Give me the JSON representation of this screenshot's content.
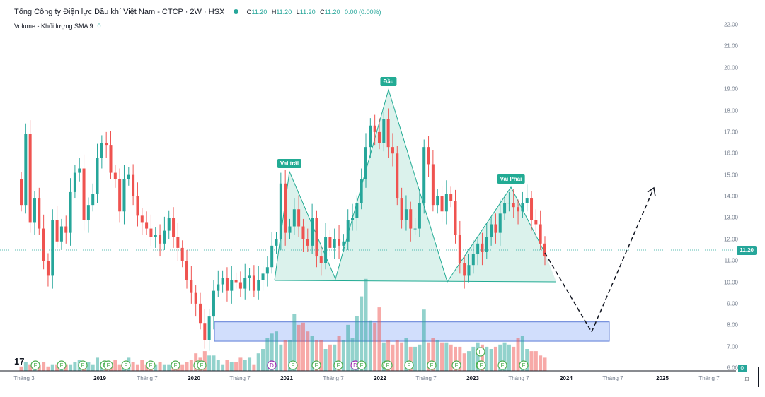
{
  "header": {
    "title": "Tổng Công ty Điện lực Dầu khí Việt Nam - CTCP · 2W · HSX",
    "ohlc": {
      "o_label": "O",
      "o": "11.20",
      "h_label": "H",
      "h": "11.20",
      "l_label": "L",
      "l": "11.20",
      "c_label": "C",
      "c": "11.20",
      "change": "0.00 (0.00%)"
    },
    "volume_label": "Volume - Khối lượng SMA 9",
    "volume_value": "0"
  },
  "price_tag": "11.20",
  "volume_tag": "0",
  "pattern_labels": {
    "left_shoulder": "Vai trái",
    "head": "Đầu",
    "right_shoulder": "Vai Phải"
  },
  "colors": {
    "up": "#26a69a",
    "down": "#ef5350",
    "pattern_fill": "#cfeee6",
    "pattern_line": "#22ab94",
    "box_fill": "#c5d6fb",
    "box_line": "#5b7bd6"
  },
  "chart_data": {
    "type": "candlestick",
    "ylim": [
      6.0,
      22.0
    ],
    "yticks": [
      "22.00",
      "21.00",
      "20.00",
      "19.00",
      "18.00",
      "17.00",
      "16.00",
      "15.00",
      "14.00",
      "13.00",
      "12.00",
      "11.00",
      "10.00",
      "9.00",
      "8.00",
      "7.00",
      "6.00"
    ],
    "xticks": [
      "Tháng 3",
      "2019",
      "Tháng 7",
      "2020",
      "Tháng 7",
      "2021",
      "Tháng 7",
      "2022",
      "Tháng 7",
      "2023",
      "Tháng 7",
      "2024",
      "Tháng 7",
      "2025",
      "Tháng 7"
    ],
    "bars_close": [
      13.6,
      16.9,
      12.8,
      13.9,
      12.5,
      11.0,
      10.3,
      12.9,
      11.9,
      12.6,
      12.3,
      14.2,
      15.1,
      15.3,
      12.9,
      13.6,
      14.1,
      15.8,
      16.5,
      16.4,
      15.1,
      14.8,
      13.3,
      14.8,
      15.0,
      14.0,
      13.1,
      12.8,
      12.5,
      12.1,
      12.2,
      11.8,
      12.4,
      13.0,
      12.1,
      11.6,
      11.0,
      10.1,
      9.5,
      9.0,
      8.1,
      7.3,
      8.4,
      9.6,
      9.9,
      10.2,
      9.6,
      10.1,
      10.0,
      9.7,
      10.2,
      10.3,
      9.6,
      10.1,
      10.4,
      10.7,
      11.7,
      12.0,
      14.6,
      12.3,
      12.6,
      13.4,
      12.6,
      12.0,
      11.7,
      13.0,
      11.2,
      10.9,
      12.1,
      11.6,
      12.0,
      11.7,
      11.9,
      12.9,
      13.0,
      13.7,
      14.8,
      16.3,
      17.3,
      17.0,
      16.5,
      17.6,
      16.3,
      16.0,
      13.9,
      12.9,
      13.4,
      12.5,
      12.5,
      13.7,
      16.3,
      15.5,
      13.6,
      14.0,
      13.3,
      14.1,
      13.8,
      12.2,
      10.9,
      10.3,
      10.8,
      11.3,
      11.8,
      11.4,
      12.1,
      12.7,
      12.3,
      13.2,
      13.7,
      13.7,
      13.5,
      13.3,
      13.7,
      13.9,
      12.9,
      12.7,
      11.8,
      11.2
    ],
    "volume": [
      0.2,
      0.4,
      0.3,
      0.2,
      0.3,
      0.4,
      0.2,
      0.3,
      0.3,
      0.4,
      0.3,
      0.3,
      0.4,
      0.5,
      0.3,
      0.4,
      0.3,
      0.6,
      0.4,
      0.3,
      0.2,
      0.5,
      0.3,
      0.4,
      0.6,
      0.4,
      0.3,
      0.5,
      0.3,
      0.2,
      0.3,
      0.4,
      0.3,
      0.3,
      0.2,
      0.4,
      0.3,
      0.4,
      0.5,
      0.8,
      0.6,
      0.9,
      0.7,
      0.7,
      0.5,
      0.3,
      0.5,
      0.4,
      0.4,
      0.6,
      0.5,
      0.6,
      0.3,
      0.8,
      1.0,
      1.5,
      1.7,
      1.8,
      1.2,
      1.4,
      1.4,
      2.6,
      2.1,
      2.2,
      1.8,
      1.6,
      1.4,
      1.4,
      1.0,
      1.2,
      1.2,
      1.6,
      1.4,
      2.1,
      1.5,
      2.5,
      3.4,
      4.2,
      2.3,
      2.2,
      2.9,
      1.3,
      1.4,
      1.2,
      1.4,
      1.3,
      1.5,
      1.1,
      1.1,
      1.2,
      2.8,
      1.3,
      1.5,
      1.4,
      1.3,
      1.3,
      1.2,
      1.1,
      1.1,
      0.8,
      0.9,
      1.1,
      1.3,
      1.2,
      1.1,
      1.0,
      1.1,
      1.2,
      1.3,
      1.2,
      1.1,
      1.5,
      1.6,
      1.0,
      0.9,
      0.9,
      0.7,
      0.6
    ],
    "patterns": {
      "head_and_shoulders": [
        [
          388,
          397
        ],
        [
          409,
          243
        ],
        [
          474,
          395
        ],
        [
          549,
          127
        ],
        [
          632,
          399
        ],
        [
          722,
          265
        ],
        [
          770,
          358
        ],
        [
          786,
          399
        ]
      ],
      "neckline": [
        [
          388,
          397
        ],
        [
          786,
          399
        ]
      ],
      "projection": [
        [
          770,
          358
        ],
        [
          836,
          470
        ],
        [
          924,
          266
        ]
      ],
      "support_box_price": [
        7.25,
        8.15
      ]
    }
  },
  "event_markers": [
    "F",
    "F",
    "F",
    "F",
    "F",
    "F",
    "F",
    "F",
    "F",
    "F",
    "D",
    "F",
    "F",
    "F",
    "D",
    "F",
    "F",
    "F",
    "F",
    "F",
    "F",
    "F",
    "F",
    "F",
    "F"
  ]
}
